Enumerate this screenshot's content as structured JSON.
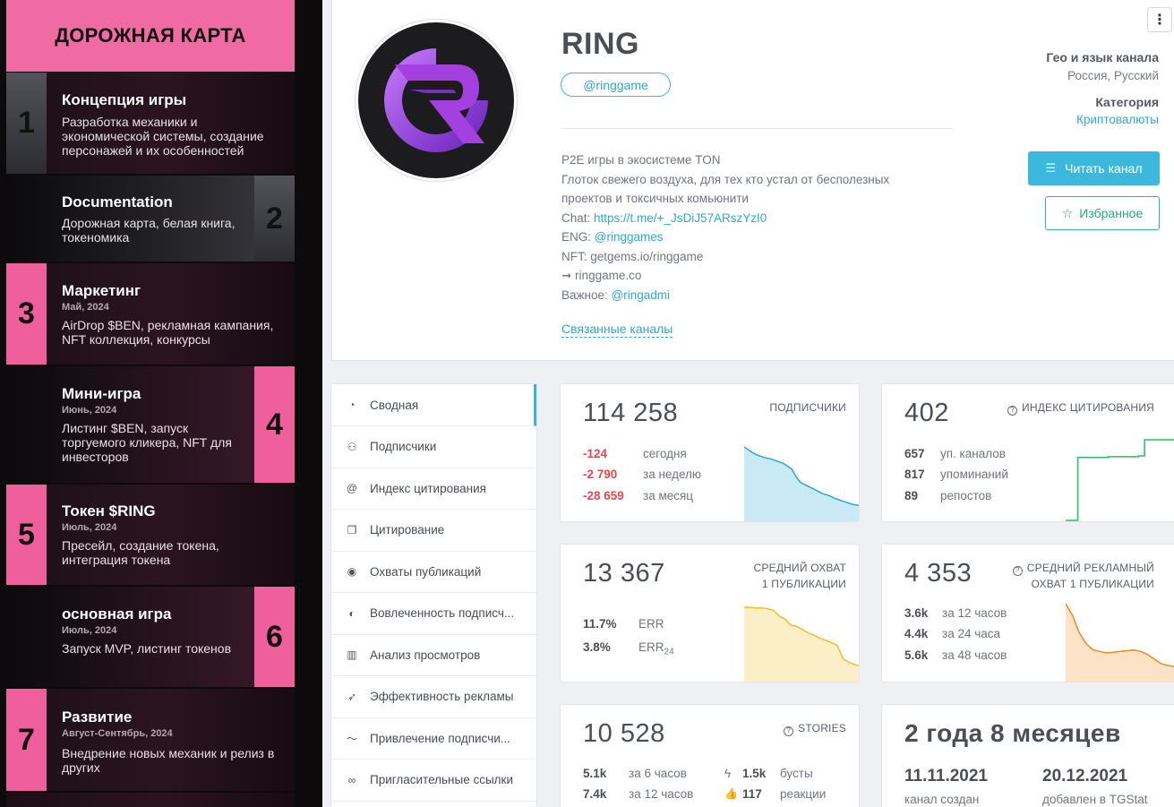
{
  "roadmap": {
    "header": "ДОРОЖНАЯ КАРТА",
    "items": [
      {
        "num": "1",
        "title": "Концепция игры",
        "date": "",
        "desc": "Разработка механики и экономической системы, создание персонажей и их особенностей"
      },
      {
        "num": "2",
        "title": "Documentation",
        "date": "",
        "desc": "Дорожная карта, белая книга, токеномика"
      },
      {
        "num": "3",
        "title": "Маркетинг",
        "date": "Май, 2024",
        "desc": "AirDrop $BEN, рекламная кампания, NFT коллекция, конкурсы"
      },
      {
        "num": "4",
        "title": "Мини-игра",
        "date": "Июнь, 2024",
        "desc": "Листинг $BEN, запуск торгуемого кликера, NFT для инвесторов"
      },
      {
        "num": "5",
        "title": "Токен $RING",
        "date": "Июль, 2024",
        "desc": "Пресейл, создание токена, интеграция токена"
      },
      {
        "num": "6",
        "title": "основная игра",
        "date": "Июль, 2024",
        "desc": "Запуск MVP, листинг токенов"
      },
      {
        "num": "7",
        "title": "Развитие",
        "date": "Август-Сентябрь, 2024",
        "desc": "Внедрение новых механик и релиз в других"
      }
    ]
  },
  "channel": {
    "title": "RING",
    "username": "@ringgame",
    "desc_lines": [
      {
        "text": "P2E игры в экосистеме TON",
        "link": ""
      },
      {
        "text": "Глоток свежего воздуха, для тех кто устал от бесполезных",
        "link": ""
      },
      {
        "text": "проектов и токсичных комьюнити",
        "link": ""
      },
      {
        "text": "Chat: ",
        "link": "https://t.me/+_JsDiJ57ARszYzI0"
      },
      {
        "text": "ENG: ",
        "link": "@ringgames"
      },
      {
        "text": "NFT: getgems.io/ringgame",
        "link": ""
      },
      {
        "text": "➞ ringgame.co",
        "link": ""
      },
      {
        "text": "Важное: ",
        "link": "@ringadmi"
      }
    ],
    "related_label": "Связанные каналы",
    "geo_label": "Гео и язык канала",
    "geo_value": "Россия, Русский",
    "category_label": "Категория",
    "category_value": "Криптовалюты",
    "read_button": "Читать канал",
    "fav_button": "Избранное"
  },
  "nav": [
    {
      "label": "Сводная",
      "icon": "dashboard-icon",
      "glyph": "◔",
      "active": true
    },
    {
      "label": "Подписчики",
      "icon": "users-icon",
      "glyph": "⚇",
      "active": false
    },
    {
      "label": "Индекс цитирования",
      "icon": "at-icon",
      "glyph": "@",
      "active": false
    },
    {
      "label": "Цитирование",
      "icon": "quote-icon",
      "glyph": "❐",
      "active": false
    },
    {
      "label": "Охваты публикаций",
      "icon": "eye-icon",
      "glyph": "◉",
      "active": false
    },
    {
      "label": "Вовлеченность подписч...",
      "icon": "engagement-icon",
      "glyph": "◐",
      "active": false
    },
    {
      "label": "Анализ просмотров",
      "icon": "bar-chart-icon",
      "glyph": "▥",
      "active": false
    },
    {
      "label": "Эффективность рекламы",
      "icon": "rocket-icon",
      "glyph": "➶",
      "active": false
    },
    {
      "label": "Привлечение подписчи...",
      "icon": "trend-icon",
      "glyph": "〜",
      "active": false
    },
    {
      "label": "Пригласительные ссылки",
      "icon": "link-icon",
      "glyph": "∞",
      "active": false
    }
  ],
  "stats": {
    "subscribers": {
      "value": "114 258",
      "label": "ПОДПИСЧИКИ",
      "rows": [
        {
          "v": "-124",
          "t": "сегодня"
        },
        {
          "v": "-2 790",
          "t": "за неделю"
        },
        {
          "v": "-28 659",
          "t": "за месяц"
        }
      ],
      "spark": [
        100,
        96,
        92,
        89,
        87,
        85,
        84,
        82,
        80,
        78,
        74,
        70,
        60,
        52,
        49,
        46,
        43,
        40,
        37,
        35,
        33,
        30,
        28,
        26,
        24,
        22,
        21,
        20
      ]
    },
    "citation": {
      "value": "402",
      "label": "ИНДЕКС ЦИТИРОВАНИЯ",
      "rows": [
        {
          "v": "657",
          "t": "уп. каналов"
        },
        {
          "v": "817",
          "t": "упоминаний"
        },
        {
          "v": "89",
          "t": "репостов"
        }
      ],
      "spark": [
        0,
        0,
        78,
        78,
        78,
        78,
        78,
        79,
        79,
        79,
        79,
        79,
        80,
        100,
        100,
        100,
        100,
        100,
        100
      ]
    },
    "reach": {
      "value": "13 367",
      "label_line1": "СРЕДНИЙ ОХВАТ",
      "label_line2": "1 ПУБЛИКАЦИИ",
      "rows": [
        {
          "v": "11.7%",
          "t": "ERR"
        },
        {
          "v": "3.8%",
          "t": "ERR",
          "sub": "24"
        }
      ],
      "spark": [
        100,
        100,
        99,
        99,
        98,
        96,
        88,
        84,
        76,
        74,
        70,
        65,
        62,
        58,
        55,
        52,
        48,
        30,
        25,
        22,
        20
      ]
    },
    "ad_reach": {
      "value": "4 353",
      "label_line1": "СРЕДНИЙ РЕКЛАМНЫЙ",
      "label_line2": "ОХВАТ 1 ПУБЛИКАЦИИ",
      "rows": [
        {
          "v": "3.6k",
          "t": "за 12 часов"
        },
        {
          "v": "4.4k",
          "t": "за 24 часа"
        },
        {
          "v": "5.6k",
          "t": "за 48 часов"
        }
      ],
      "spark": [
        100,
        85,
        62,
        48,
        40,
        38,
        36,
        37,
        38,
        39,
        40,
        38,
        34,
        28,
        22,
        20,
        18
      ]
    },
    "stories": {
      "value": "10 528",
      "label": "STORIES",
      "rows_left": [
        {
          "v": "5.1k",
          "t": "за 6 часов"
        },
        {
          "v": "7.4k",
          "t": "за 12 часов"
        }
      ],
      "rows_right": [
        {
          "v": "1.5k",
          "t": "бусты",
          "icon": "lightning-icon",
          "glyph": "ϟ"
        },
        {
          "v": "117",
          "t": "реакции",
          "icon": "thumbs-up-icon",
          "glyph": "👍"
        }
      ]
    },
    "age": {
      "value": "2 года 8 месяцев",
      "created_date": "11.11.2021",
      "created_label": "канал создан",
      "added_date": "20.12.2021",
      "added_label": "добавлен в TGStat"
    }
  },
  "colors": {
    "accent": "#3db8dd",
    "pink": "#f06aa4",
    "red": "#e5484d",
    "green": "#2ebd8f",
    "spark_blue": "#29a9d4",
    "spark_green": "#2dbb5f",
    "spark_yellow": "#f0c020",
    "spark_orange": "#f28a1a"
  }
}
